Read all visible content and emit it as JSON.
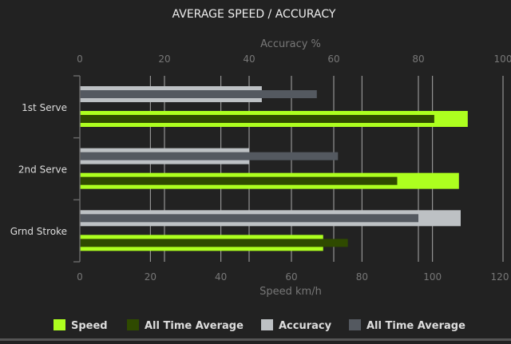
{
  "chart_data": {
    "type": "bar",
    "orientation": "horizontal",
    "title": "AVERAGE SPEED / ACCURACY",
    "categories": [
      "1st Serve",
      "2nd Serve",
      "Grnd Stroke"
    ],
    "speed_axis": {
      "label": "Speed km/h",
      "range": [
        0,
        120
      ],
      "ticks": [
        0,
        20,
        40,
        60,
        80,
        100,
        120
      ],
      "position": "bottom"
    },
    "accuracy_axis": {
      "label": "Accuracy %",
      "range": [
        0,
        100
      ],
      "ticks": [
        0,
        20,
        40,
        60,
        80,
        100
      ],
      "position": "top"
    },
    "grid": true,
    "legend_position": "bottom",
    "series": [
      {
        "name": "Speed",
        "axis": "speed",
        "color": "#adff1f",
        "values": [
          110,
          107.5,
          69
        ]
      },
      {
        "name": "All Time Average",
        "axis": "speed",
        "color": "#2f4a00",
        "values": [
          100.5,
          90,
          76
        ]
      },
      {
        "name": "Accuracy",
        "axis": "accuracy",
        "color": "#bdc1c4",
        "values": [
          43,
          40,
          90
        ]
      },
      {
        "name": "All Time Average",
        "axis": "accuracy",
        "color": "#545960",
        "values": [
          56,
          61,
          80
        ]
      }
    ]
  }
}
